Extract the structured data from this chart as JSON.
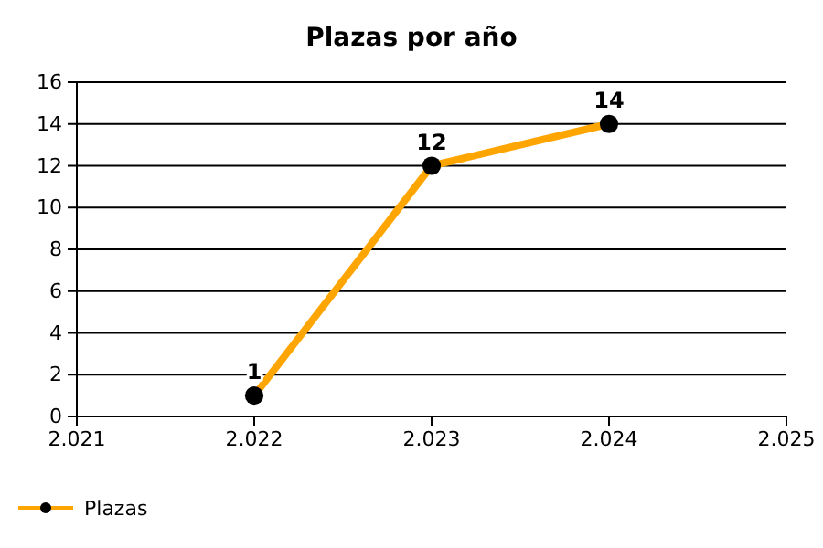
{
  "chart_data": {
    "type": "line",
    "title": "Plazas por año",
    "x": [
      2022,
      2023,
      2024
    ],
    "series": [
      {
        "name": "Plazas",
        "color": "#ffa500",
        "values": [
          1,
          12,
          14
        ]
      }
    ],
    "xlim": [
      2021,
      2025
    ],
    "xticks": [
      {
        "value": 2021,
        "label": "2.021"
      },
      {
        "value": 2022,
        "label": "2.022"
      },
      {
        "value": 2023,
        "label": "2.023"
      },
      {
        "value": 2024,
        "label": "2.024"
      },
      {
        "value": 2025,
        "label": "2.025"
      }
    ],
    "ylim": [
      0,
      16
    ],
    "yticks": [
      0,
      2,
      4,
      6,
      8,
      10,
      12,
      14,
      16
    ],
    "grid": "y",
    "legend": "bottom left",
    "marker": "circle",
    "line_style": "solid",
    "data_labels": true
  }
}
